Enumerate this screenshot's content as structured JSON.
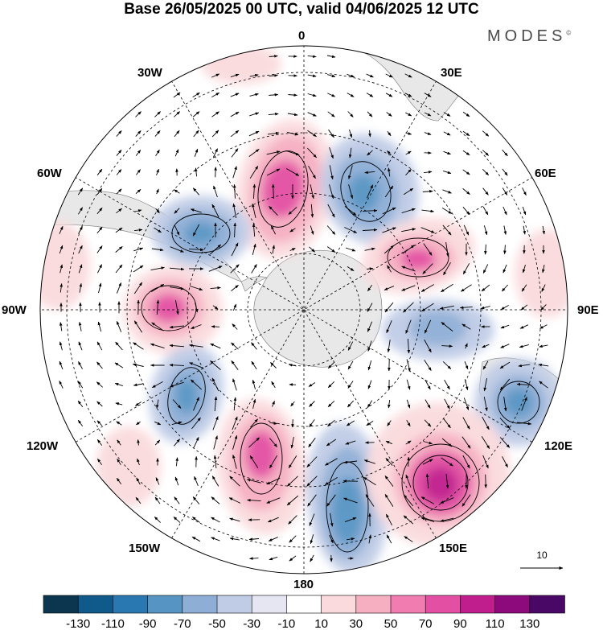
{
  "title": "Base 26/05/2025 00 UTC, valid 04/06/2025 12 UTC",
  "brand": "MODES",
  "brand_mark": "©",
  "longitude_labels": {
    "lon_0": "0",
    "lon_30e": "30E",
    "lon_60e": "60E",
    "lon_90e": "90E",
    "lon_120e": "120E",
    "lon_150e": "150E",
    "lon_180": "180",
    "lon_150w": "150W",
    "lon_120w": "120W",
    "lon_90w": "90W",
    "lon_60w": "60W",
    "lon_30w": "30W"
  },
  "reference_vector": {
    "label": "10"
  },
  "colorbar": {
    "ticks": [
      "-130",
      "-110",
      "-90",
      "-70",
      "-50",
      "-30",
      "-10",
      "10",
      "30",
      "50",
      "70",
      "90",
      "110",
      "130"
    ],
    "colors": [
      "#0c3650",
      "#0f5a8a",
      "#2a78b2",
      "#5694c4",
      "#8faed6",
      "#c0cce6",
      "#e6e6f2",
      "#ffffff",
      "#fadadd",
      "#f6aec1",
      "#f07cb0",
      "#e34fa2",
      "#c01e8c",
      "#8c0a7c",
      "#4a0866"
    ]
  },
  "anomaly_centers": [
    {
      "name": "positive-anomaly-south-atlantic",
      "sign": "positive",
      "value": 70
    },
    {
      "name": "negative-anomaly-south-atlantic-east",
      "sign": "negative",
      "value": -70
    },
    {
      "name": "negative-anomaly-drake",
      "sign": "negative",
      "value": -70
    },
    {
      "name": "positive-anomaly-indian-west",
      "sign": "positive",
      "value": 70
    },
    {
      "name": "positive-anomaly-amundsen",
      "sign": "positive",
      "value": 70
    },
    {
      "name": "negative-anomaly-indian-central",
      "sign": "negative",
      "value": -50
    },
    {
      "name": "negative-anomaly-pacific-east",
      "sign": "negative",
      "value": -70
    },
    {
      "name": "negative-anomaly-australia-south",
      "sign": "negative",
      "value": -70
    },
    {
      "name": "positive-anomaly-pacific-central",
      "sign": "positive",
      "value": 70
    },
    {
      "name": "negative-anomaly-ross",
      "sign": "negative",
      "value": -90
    },
    {
      "name": "positive-anomaly-tasman",
      "sign": "positive",
      "value": 110
    },
    {
      "name": "positive-anomaly-indian-east",
      "sign": "positive",
      "value": 30
    }
  ]
}
